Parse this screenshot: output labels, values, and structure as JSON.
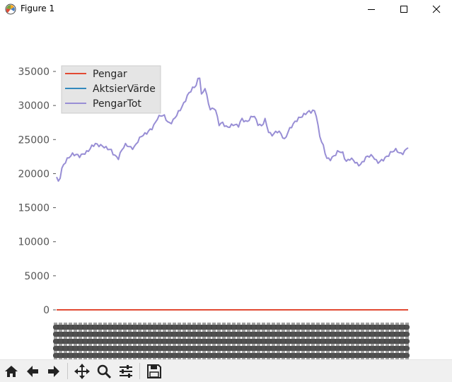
{
  "window": {
    "title": "Figure 1"
  },
  "window_controls": {
    "minimize_icon": "minimize-icon",
    "maximize_icon": "maximize-icon",
    "close_icon": "close-icon"
  },
  "toolbar": {
    "tools": [
      "home-icon",
      "back-arrow-icon",
      "forward-arrow-icon",
      "pan-icon",
      "zoom-icon",
      "configure-subplots-icon",
      "save-icon"
    ]
  },
  "chart_data": {
    "type": "line",
    "title": "",
    "xlabel": "",
    "ylabel": "",
    "ylim": [
      -800,
      36000
    ],
    "yticks": [
      0,
      5000,
      10000,
      15000,
      20000,
      25000,
      30000,
      35000
    ],
    "ytick_labels": [
      "0",
      "5000",
      "10000",
      "15000",
      "20000",
      "25000",
      "30000",
      "35000"
    ],
    "x_tick_labels_legible": false,
    "grid": false,
    "legend": {
      "position": "upper-left",
      "entries": [
        "Pengar",
        "AktsierVärde",
        "PengarTot"
      ]
    },
    "n_points": 200,
    "series": [
      {
        "name": "Pengar",
        "color": "#e24a33",
        "constant": 0
      },
      {
        "name": "AktsierVärde",
        "color": "#348abd",
        "constant": 0
      },
      {
        "name": "PengarTot",
        "color": "#988ed5",
        "points": [
          [
            0,
            19500
          ],
          [
            3,
            18600
          ],
          [
            6,
            20600
          ],
          [
            10,
            21600
          ],
          [
            15,
            22200
          ],
          [
            20,
            22700
          ],
          [
            25,
            22800
          ],
          [
            30,
            22700
          ],
          [
            35,
            23000
          ],
          [
            40,
            23100
          ],
          [
            45,
            23800
          ],
          [
            50,
            24400
          ],
          [
            55,
            24300
          ],
          [
            60,
            24100
          ],
          [
            65,
            23600
          ],
          [
            70,
            23400
          ],
          [
            75,
            22700
          ],
          [
            80,
            22400
          ],
          [
            85,
            23700
          ],
          [
            90,
            24200
          ],
          [
            95,
            23700
          ],
          [
            100,
            23800
          ],
          [
            105,
            24900
          ],
          [
            110,
            25600
          ],
          [
            115,
            25700
          ],
          [
            120,
            26200
          ],
          [
            125,
            26900
          ],
          [
            130,
            28200
          ],
          [
            135,
            28600
          ],
          [
            140,
            28300
          ],
          [
            145,
            27200
          ],
          [
            150,
            27700
          ],
          [
            155,
            28700
          ],
          [
            160,
            29400
          ],
          [
            165,
            30200
          ],
          [
            170,
            31500
          ],
          [
            175,
            32500
          ],
          [
            180,
            33000
          ],
          [
            185,
            34400
          ],
          [
            188,
            31000
          ],
          [
            192,
            32600
          ],
          [
            197,
            30000
          ],
          [
            200,
            29400
          ],
          [
            205,
            29900
          ],
          [
            210,
            27200
          ],
          [
            215,
            27300
          ],
          [
            220,
            26700
          ],
          [
            225,
            27100
          ],
          [
            230,
            27400
          ],
          [
            235,
            26900
          ],
          [
            240,
            27900
          ],
          [
            245,
            27500
          ],
          [
            250,
            28100
          ],
          [
            255,
            28800
          ],
          [
            260,
            27300
          ],
          [
            265,
            26800
          ],
          [
            270,
            27900
          ],
          [
            275,
            26000
          ],
          [
            280,
            25800
          ],
          [
            285,
            26200
          ],
          [
            290,
            25800
          ],
          [
            295,
            24900
          ],
          [
            300,
            26400
          ],
          [
            305,
            27200
          ],
          [
            310,
            27700
          ],
          [
            315,
            28100
          ],
          [
            320,
            28600
          ],
          [
            325,
            29200
          ],
          [
            330,
            29200
          ],
          [
            333,
            29300
          ],
          [
            336,
            28600
          ],
          [
            340,
            25600
          ],
          [
            345,
            24100
          ],
          [
            350,
            22300
          ],
          [
            355,
            22200
          ],
          [
            360,
            22600
          ],
          [
            365,
            23200
          ],
          [
            370,
            23100
          ],
          [
            375,
            21900
          ],
          [
            380,
            22300
          ],
          [
            385,
            21800
          ],
          [
            390,
            21100
          ],
          [
            395,
            21500
          ],
          [
            400,
            22500
          ],
          [
            405,
            22700
          ],
          [
            410,
            22400
          ],
          [
            415,
            21500
          ],
          [
            420,
            21900
          ],
          [
            425,
            22400
          ],
          [
            430,
            22800
          ],
          [
            435,
            23200
          ],
          [
            440,
            23400
          ],
          [
            445,
            22900
          ],
          [
            450,
            23300
          ],
          [
            455,
            24000
          ]
        ]
      }
    ]
  }
}
